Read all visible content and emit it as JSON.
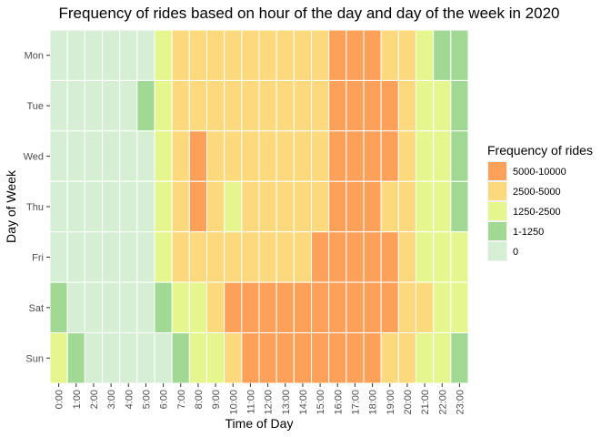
{
  "chart_data": {
    "type": "heatmap",
    "title": "Frequency of rides based on hour of the day and day of the week in 2020",
    "xlabel": "Time of Day",
    "ylabel": "Day of Week",
    "x": [
      "0:00",
      "1:00",
      "2:00",
      "3:00",
      "4:00",
      "5:00",
      "6:00",
      "7:00",
      "8:00",
      "9:00",
      "10:00",
      "11:00",
      "12:00",
      "13:00",
      "14:00",
      "15:00",
      "16:00",
      "17:00",
      "18:00",
      "19:00",
      "20:00",
      "21:00",
      "22:00",
      "23:00"
    ],
    "y": [
      "Mon",
      "Tue",
      "Wed",
      "Thu",
      "Fri",
      "Sat",
      "Sun"
    ],
    "legend": {
      "title": "Frequency of rides",
      "position": "right",
      "bins": [
        {
          "label": "5000-10000",
          "color": "#FDA15A"
        },
        {
          "label": "2500-5000",
          "color": "#FDD97D"
        },
        {
          "label": "1250-2500",
          "color": "#E5F68F"
        },
        {
          "label": "1-1250",
          "color": "#A1D994"
        },
        {
          "label": "0",
          "color": "#D6EFD4"
        }
      ]
    },
    "grid": true,
    "values": [
      [
        4,
        4,
        4,
        4,
        4,
        4,
        2,
        1,
        1,
        1,
        1,
        1,
        1,
        1,
        1,
        1,
        0,
        0,
        0,
        1,
        1,
        2,
        3,
        3
      ],
      [
        4,
        4,
        4,
        4,
        4,
        3,
        2,
        1,
        1,
        1,
        1,
        1,
        1,
        1,
        1,
        1,
        0,
        0,
        0,
        0,
        1,
        2,
        2,
        3
      ],
      [
        4,
        4,
        4,
        4,
        4,
        4,
        2,
        1,
        0,
        1,
        1,
        1,
        1,
        1,
        1,
        1,
        0,
        0,
        0,
        0,
        1,
        2,
        2,
        3
      ],
      [
        4,
        4,
        4,
        4,
        4,
        4,
        2,
        1,
        0,
        1,
        2,
        1,
        1,
        1,
        1,
        1,
        0,
        0,
        0,
        1,
        1,
        2,
        2,
        3
      ],
      [
        4,
        4,
        4,
        4,
        4,
        4,
        2,
        1,
        1,
        1,
        1,
        1,
        1,
        1,
        1,
        0,
        0,
        0,
        0,
        0,
        1,
        2,
        2,
        2
      ],
      [
        3,
        4,
        4,
        4,
        4,
        4,
        3,
        2,
        2,
        1,
        0,
        0,
        0,
        0,
        0,
        0,
        0,
        0,
        0,
        0,
        1,
        1,
        2,
        2
      ],
      [
        2,
        3,
        4,
        4,
        4,
        4,
        4,
        3,
        2,
        2,
        1,
        0,
        0,
        0,
        0,
        0,
        0,
        0,
        0,
        1,
        1,
        2,
        2,
        3
      ]
    ]
  }
}
